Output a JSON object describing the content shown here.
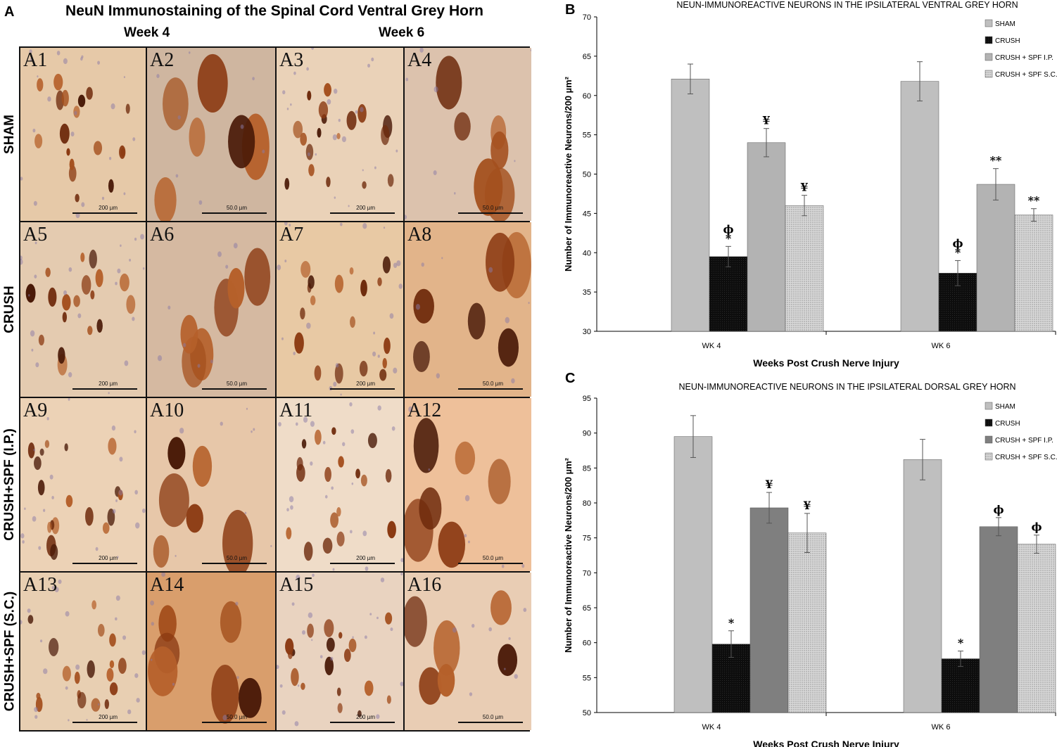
{
  "panel_a": {
    "letter": "A",
    "title": "NeuN Immunostaining of the Spinal Cord Ventral Grey Horn",
    "weeks": [
      "Week 4",
      "Week 6"
    ],
    "rows": [
      "SHAM",
      "CRUSH",
      "CRUSH+SPF (I.P.)",
      "CRUSH+SPF (S.C.)"
    ],
    "cells": [
      {
        "label": "A1",
        "scale": "200 µm"
      },
      {
        "label": "A2",
        "scale": "50.0 µm"
      },
      {
        "label": "A3",
        "scale": "200 µm"
      },
      {
        "label": "A4",
        "scale": "50.0 µm"
      },
      {
        "label": "A5",
        "scale": "200 µm"
      },
      {
        "label": "A6",
        "scale": "50.0 µm"
      },
      {
        "label": "A7",
        "scale": "200 µm"
      },
      {
        "label": "A8",
        "scale": "50.0 µm"
      },
      {
        "label": "A9",
        "scale": "200 µm"
      },
      {
        "label": "A10",
        "scale": "50.0 µm"
      },
      {
        "label": "A11",
        "scale": "200 µm"
      },
      {
        "label": "A12",
        "scale": "50.0 µm"
      },
      {
        "label": "A13",
        "scale": "200 µm"
      },
      {
        "label": "A14",
        "scale": "50.0 µm"
      },
      {
        "label": "A15",
        "scale": "200 µm"
      },
      {
        "label": "A16",
        "scale": "50.0 µm"
      }
    ]
  },
  "colors": {
    "sham": "#bfbfbf",
    "crush": "#0d0d0d",
    "spf_ip_b": "#b3b3b3",
    "spf_ip_c": "#7f7f7f",
    "spf_sc": "#d9d9d9",
    "axis": "#000000"
  },
  "chart_data": [
    {
      "panel": "B",
      "type": "bar",
      "title": "NEUN-IMMUNOREACTIVE NEURONS IN THE IPSILATERAL VENTRAL GREY HORN",
      "xlabel": "Weeks Post Crush Nerve Injury",
      "ylabel": "Number of Immunoreactive Neurons/200 µm²",
      "categories": [
        "WK 4",
        "WK 6"
      ],
      "ylim": [
        30,
        70
      ],
      "yticks": [
        30,
        35,
        40,
        45,
        50,
        55,
        60,
        65,
        70
      ],
      "legend_position": "top-right",
      "grid": false,
      "series": [
        {
          "name": "SHAM",
          "values": [
            62.1,
            61.8
          ],
          "errors": [
            1.9,
            2.5
          ],
          "annotations": [
            "",
            ""
          ],
          "color_key": "sham",
          "pattern": "solid"
        },
        {
          "name": "CRUSH",
          "values": [
            39.5,
            37.4
          ],
          "errors": [
            1.3,
            1.6
          ],
          "annotations": [
            "ϕ\n*",
            "ϕ\n*"
          ],
          "color_key": "crush",
          "pattern": "solid"
        },
        {
          "name": "CRUSH + SPF I.P.",
          "values": [
            54.0,
            48.7
          ],
          "errors": [
            1.8,
            2.0
          ],
          "annotations": [
            "¥",
            "**"
          ],
          "color_key": "spf_ip_b",
          "pattern": "solid"
        },
        {
          "name": "CRUSH + SPF S.C.",
          "values": [
            46.0,
            44.8
          ],
          "errors": [
            1.3,
            0.8
          ],
          "annotations": [
            "¥",
            "**"
          ],
          "color_key": "spf_sc",
          "pattern": "dots"
        }
      ]
    },
    {
      "panel": "C",
      "type": "bar",
      "title": "NEUN-IMMUNOREACTIVE NEURONS IN THE IPSILATERAL DORSAL GREY HORN",
      "xlabel": "Weeks Post Crush Nerve Injury",
      "ylabel": "Number of Immunoreactive Neurons/200 µm²",
      "categories": [
        "WK 4",
        "WK 6"
      ],
      "ylim": [
        50,
        95
      ],
      "yticks": [
        50,
        55,
        60,
        65,
        70,
        75,
        80,
        85,
        90,
        95
      ],
      "legend_position": "top-right",
      "grid": false,
      "series": [
        {
          "name": "SHAM",
          "values": [
            89.5,
            86.2
          ],
          "errors": [
            3.0,
            2.9
          ],
          "annotations": [
            "",
            ""
          ],
          "color_key": "sham",
          "pattern": "solid"
        },
        {
          "name": "CRUSH",
          "values": [
            59.8,
            57.7
          ],
          "errors": [
            1.9,
            1.1
          ],
          "annotations": [
            "*",
            "*"
          ],
          "color_key": "crush",
          "pattern": "solid"
        },
        {
          "name": "CRUSH + SPF I.P.",
          "values": [
            79.3,
            76.6
          ],
          "errors": [
            2.2,
            1.3
          ],
          "annotations": [
            "¥",
            "ϕ"
          ],
          "color_key": "spf_ip_c",
          "pattern": "solid"
        },
        {
          "name": "CRUSH + SPF S.C.",
          "values": [
            75.7,
            74.1
          ],
          "errors": [
            2.8,
            1.3
          ],
          "annotations": [
            "¥",
            "ϕ"
          ],
          "color_key": "spf_sc",
          "pattern": "dots"
        }
      ]
    }
  ]
}
